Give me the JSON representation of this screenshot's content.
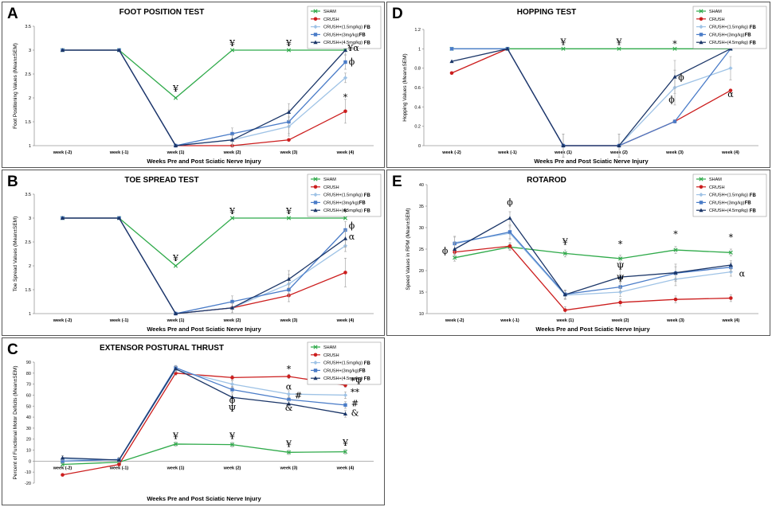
{
  "colors": {
    "sham": "#2faa4a",
    "crush": "#cc1e1e",
    "fb15": "#9fc3e6",
    "fb3": "#4a7cc8",
    "fb45": "#1b3668"
  },
  "chart_data": [
    {
      "id": "A",
      "panel_label": "A",
      "type": "line",
      "title": "FOOT POSITION TEST",
      "xlabel": "Weeks Pre and Post Sciatic Nerve Injury",
      "ylabel": "Foot Positioning Values (Mean±SEM)",
      "categories": [
        "week (-2)",
        "week (-1)",
        "week (1)",
        "week (2)",
        "week (3)",
        "week (4)"
      ],
      "ylim": [
        1,
        3.5
      ],
      "yticks": [
        "1",
        "1.5",
        "2",
        "2.5",
        "3",
        "3.5"
      ],
      "series": [
        {
          "name": "SHAM",
          "fb": "",
          "key": "sham",
          "marker": "x",
          "values": [
            3,
            3,
            2,
            3,
            3,
            3
          ],
          "err": [
            0,
            0,
            0,
            0,
            0,
            0
          ]
        },
        {
          "name": "CRUSH",
          "fb": "",
          "key": "crush",
          "marker": "circle",
          "values": [
            3,
            3,
            1,
            1,
            1.12,
            1.72
          ],
          "err": [
            0,
            0,
            0,
            0,
            0,
            0.25
          ]
        },
        {
          "name": "CRUSH+(1.5mg/kg)",
          "fb": "FB",
          "key": "fb15",
          "marker": "diamond",
          "values": [
            3,
            3,
            1,
            1.12,
            1.4,
            2.42
          ],
          "err": [
            0,
            0,
            0,
            0.15,
            0.2,
            0.1
          ]
        },
        {
          "name": "CRUSH+(3mg/kg)",
          "fb": "FB",
          "key": "fb3",
          "marker": "square",
          "values": [
            3,
            3,
            1,
            1.25,
            1.5,
            2.75
          ],
          "err": [
            0,
            0,
            0,
            0.12,
            0.25,
            0.15
          ]
        },
        {
          "name": "CRUSH+(4.5mg/kg)",
          "fb": "FB",
          "key": "fb45",
          "marker": "triangle",
          "values": [
            3,
            3,
            1,
            1.12,
            1.7,
            3.0
          ],
          "err": [
            0,
            0,
            0,
            0.1,
            0.18,
            0.1
          ]
        }
      ],
      "annotations": [
        {
          "text": "¥",
          "cat": 2,
          "y": 2.13
        },
        {
          "text": "¥",
          "cat": 3,
          "y": 3.08
        },
        {
          "text": "¥",
          "cat": 4,
          "y": 3.08
        },
        {
          "text": "¥α",
          "cat": 5,
          "y": 2.98,
          "dx": 10
        },
        {
          "text": "ϕ",
          "cat": 5,
          "y": 2.7,
          "dx": 8
        },
        {
          "text": "*",
          "cat": 5,
          "y": 1.95,
          "dx": 0
        }
      ]
    },
    {
      "id": "B",
      "panel_label": "B",
      "type": "line",
      "title": "TOE SPREAD TEST",
      "xlabel": "Weeks Pre and Post Sciatic Nerve Injury",
      "ylabel": "Toe Spread Values (Mean±SEM)",
      "categories": [
        "week (-2)",
        "week (-1)",
        "week (1)",
        "week (2)",
        "week (3)",
        "week (4)"
      ],
      "ylim": [
        1,
        3.5
      ],
      "yticks": [
        "1",
        "1.5",
        "2",
        "2.5",
        "3",
        "3.5"
      ],
      "series": [
        {
          "name": "SHAM",
          "fb": "",
          "key": "sham",
          "marker": "x",
          "values": [
            3,
            3,
            2,
            3,
            3,
            3
          ],
          "err": [
            0,
            0,
            0,
            0,
            0,
            0
          ]
        },
        {
          "name": "CRUSH",
          "fb": "",
          "key": "crush",
          "marker": "circle",
          "values": [
            3,
            3,
            1,
            1.12,
            1.38,
            1.86
          ],
          "err": [
            0,
            0,
            0,
            0,
            0,
            0.3
          ]
        },
        {
          "name": "CRUSH+(1.5mg/kg)",
          "fb": "FB",
          "key": "fb15",
          "marker": "diamond",
          "values": [
            3,
            3,
            1,
            1.12,
            1.62,
            2.42
          ],
          "err": [
            0,
            0,
            0,
            0.1,
            0.2,
            0.12
          ]
        },
        {
          "name": "CRUSH+(3mg/kg)",
          "fb": "FB",
          "key": "fb3",
          "marker": "square",
          "values": [
            3,
            3,
            1,
            1.25,
            1.5,
            2.75
          ],
          "err": [
            0,
            0,
            0,
            0.12,
            0.25,
            0.18
          ]
        },
        {
          "name": "CRUSH+(4.5mg/kg)",
          "fb": "FB",
          "key": "fb45",
          "marker": "triangle",
          "values": [
            3,
            3,
            1,
            1.12,
            1.72,
            2.57
          ],
          "err": [
            0,
            0,
            0,
            0.1,
            0.18,
            0.18
          ]
        }
      ],
      "annotations": [
        {
          "text": "¥",
          "cat": 2,
          "y": 2.1
        },
        {
          "text": "¥",
          "cat": 3,
          "y": 3.08
        },
        {
          "text": "¥",
          "cat": 4,
          "y": 3.08
        },
        {
          "text": "*",
          "cat": 5,
          "y": 3.06,
          "dx": 0
        },
        {
          "text": "ϕ",
          "cat": 5,
          "y": 2.78,
          "dx": 8
        },
        {
          "text": "α",
          "cat": 5,
          "y": 2.55,
          "dx": 8
        }
      ]
    },
    {
      "id": "C",
      "panel_label": "C",
      "type": "line",
      "title": "EXTENSOR POSTURAL THRUST",
      "xlabel": "Weeks Pre and Post Sciatic Nerve Injury",
      "ylabel": "Percent of Functional Motor Deficits (Mean±SEM)",
      "categories": [
        "week (-2)",
        "week (-1)",
        "week (1)",
        "week (2)",
        "week (3)",
        "week (4)"
      ],
      "ylim": [
        -20,
        90
      ],
      "yticks": [
        "-20",
        "-10",
        "0",
        "10",
        "20",
        "30",
        "40",
        "50",
        "60",
        "70",
        "80",
        "90"
      ],
      "series": [
        {
          "name": "SHAM",
          "fb": "",
          "key": "sham",
          "marker": "x",
          "values": [
            -3,
            -1,
            15.5,
            15,
            8,
            8.5
          ],
          "err": [
            0,
            0,
            2,
            2,
            2,
            2
          ]
        },
        {
          "name": "CRUSH",
          "fb": "",
          "key": "crush",
          "marker": "circle",
          "values": [
            -12.5,
            -3,
            80,
            76,
            77,
            69
          ],
          "err": [
            0,
            0,
            2,
            2,
            2,
            2
          ]
        },
        {
          "name": "CRUSH+(1.5mg/kg)",
          "fb": "FB",
          "key": "fb15",
          "marker": "diamond",
          "values": [
            2,
            1,
            83,
            70,
            61,
            60
          ],
          "err": [
            3,
            2,
            2,
            3,
            3,
            3
          ]
        },
        {
          "name": "CRUSH+(3mg/kg)",
          "fb": "FB",
          "key": "fb3",
          "marker": "square",
          "values": [
            0,
            1.5,
            85,
            65,
            56,
            51
          ],
          "err": [
            2,
            2,
            2,
            3,
            3,
            3
          ]
        },
        {
          "name": "CRUSH+(4.5mg/kg)",
          "fb": "FB",
          "key": "fb45",
          "marker": "triangle",
          "values": [
            3,
            1,
            84,
            58,
            52,
            43
          ],
          "err": [
            2,
            2,
            2,
            3,
            3,
            3
          ]
        }
      ],
      "annotations": [
        {
          "text": "¥",
          "cat": 2,
          "y": 20
        },
        {
          "text": "¥",
          "cat": 3,
          "y": 20
        },
        {
          "text": "¥",
          "cat": 4,
          "y": 13
        },
        {
          "text": "¥",
          "cat": 5,
          "y": 14
        },
        {
          "text": "*",
          "cat": 4,
          "y": 81
        },
        {
          "text": "α",
          "cat": 4,
          "y": 65
        },
        {
          "text": "#",
          "cat": 4,
          "y": 57,
          "dx": 12
        },
        {
          "text": "&",
          "cat": 4,
          "y": 46
        },
        {
          "text": "ϕ",
          "cat": 3,
          "y": 53
        },
        {
          "text": "Ψ",
          "cat": 3,
          "y": 45
        },
        {
          "text": "*Ψ",
          "cat": 5,
          "y": 70,
          "dx": 14
        },
        {
          "text": "**",
          "cat": 5,
          "y": 60,
          "dx": 12
        },
        {
          "text": "#",
          "cat": 5,
          "y": 50,
          "dx": 12
        },
        {
          "text": "&",
          "cat": 5,
          "y": 41,
          "dx": 12
        }
      ]
    },
    {
      "id": "D",
      "panel_label": "D",
      "type": "line",
      "title": "HOPPING TEST",
      "xlabel": "Weeks Pre and Post Sciatic Nerve Injury",
      "ylabel": "Hopping Values (Mean±SEM)",
      "categories": [
        "week (-2)",
        "week (-1)",
        "week (1)",
        "week (2)",
        "week (3)",
        "week (4)"
      ],
      "ylim": [
        0,
        1.2
      ],
      "yticks": [
        "0",
        "0.2",
        "0.4",
        "0.6",
        "0.8",
        "1",
        "1.2"
      ],
      "series": [
        {
          "name": "SHAM",
          "fb": "",
          "key": "sham",
          "marker": "x",
          "values": [
            1,
            1,
            1,
            1,
            1,
            1
          ],
          "err": [
            0,
            0,
            0,
            0,
            0,
            0
          ]
        },
        {
          "name": "CRUSH",
          "fb": "",
          "key": "crush",
          "marker": "circle",
          "values": [
            0.75,
            1,
            0,
            0,
            0.25,
            0.57
          ],
          "err": [
            0,
            0,
            0,
            0,
            0,
            0
          ]
        },
        {
          "name": "CRUSH+(1.5mg/kg)",
          "fb": "FB",
          "key": "fb15",
          "marker": "diamond",
          "values": [
            1,
            1,
            0,
            0,
            0.6,
            0.8
          ],
          "err": [
            0,
            0,
            0.12,
            0.12,
            0.18,
            0.12
          ]
        },
        {
          "name": "CRUSH+(3mg/kg)",
          "fb": "FB",
          "key": "fb3",
          "marker": "square",
          "values": [
            1,
            1,
            0,
            0,
            0.25,
            1
          ],
          "err": [
            0,
            0,
            0,
            0,
            0,
            0
          ]
        },
        {
          "name": "CRUSH+(4.5mg/kg)",
          "fb": "FB",
          "key": "fb45",
          "marker": "triangle",
          "values": [
            0.87,
            1,
            0,
            0,
            0.71,
            1
          ],
          "err": [
            0,
            0,
            0.12,
            0.12,
            0.17,
            0
          ]
        }
      ],
      "annotations": [
        {
          "text": "¥",
          "cat": 2,
          "y": 1.04
        },
        {
          "text": "¥",
          "cat": 3,
          "y": 1.04
        },
        {
          "text": "*",
          "cat": 4,
          "y": 1.02
        },
        {
          "text": "ϕ",
          "cat": 4,
          "y": 0.68,
          "dx": 8
        },
        {
          "text": "ϕ",
          "cat": 4,
          "y": 0.45,
          "dx": -4
        },
        {
          "text": "α",
          "cat": 5,
          "y": 0.5,
          "dx": 0
        }
      ]
    },
    {
      "id": "E",
      "panel_label": "E",
      "type": "line",
      "title": "ROTAROD",
      "xlabel": "Weeks Pre and Post Sciatic Nerve Injury",
      "ylabel": "Speed Values in RPM (Mean±SEM)",
      "categories": [
        "week (-2)",
        "week (-1)",
        "week (1)",
        "week (2)",
        "week (3)",
        "week (4)"
      ],
      "ylim": [
        10,
        40
      ],
      "yticks": [
        "10",
        "15",
        "20",
        "25",
        "30",
        "35",
        "40"
      ],
      "series": [
        {
          "name": "SHAM",
          "fb": "",
          "key": "sham",
          "marker": "x",
          "values": [
            23,
            25.5,
            24,
            22.8,
            24.8,
            24.2
          ],
          "err": [
            0.8,
            0.8,
            0.8,
            0.8,
            0.8,
            0.8
          ]
        },
        {
          "name": "CRUSH",
          "fb": "",
          "key": "crush",
          "marker": "circle",
          "values": [
            24.3,
            25.7,
            10.8,
            12.6,
            13.3,
            13.6
          ],
          "err": [
            0.8,
            0.8,
            0.8,
            0.8,
            0.8,
            0.8
          ]
        },
        {
          "name": "CRUSH+(1.5mg/kg)",
          "fb": "FB",
          "key": "fb15",
          "marker": "diamond",
          "values": [
            26.5,
            28.7,
            14.3,
            15,
            18,
            19.7
          ],
          "err": [
            1.5,
            1.5,
            1,
            1,
            1.5,
            1
          ]
        },
        {
          "name": "CRUSH+(3mg/kg)",
          "fb": "FB",
          "key": "fb3",
          "marker": "square",
          "values": [
            26.3,
            29,
            14.5,
            16.2,
            19.4,
            20.8
          ],
          "err": [
            1.5,
            1.5,
            1,
            1,
            1.5,
            1
          ]
        },
        {
          "name": "CRUSH+(4.5mg/kg)",
          "fb": "FB",
          "key": "fb45",
          "marker": "triangle",
          "values": [
            25,
            32.2,
            14.4,
            18.5,
            19.5,
            21.3
          ],
          "err": [
            1.5,
            1.5,
            1,
            2.5,
            2,
            1
          ]
        }
      ],
      "annotations": [
        {
          "text": "ϕ",
          "cat": 0,
          "y": 24,
          "dx": -12
        },
        {
          "text": "ϕ",
          "cat": 1,
          "y": 35.3
        },
        {
          "text": "¥",
          "cat": 2,
          "y": 26
        },
        {
          "text": "*",
          "cat": 3,
          "y": 25.5
        },
        {
          "text": "Ψ",
          "cat": 3,
          "y": 20.3
        },
        {
          "text": "Ψ",
          "cat": 3,
          "y": 17.5
        },
        {
          "text": "*",
          "cat": 4,
          "y": 27.8
        },
        {
          "text": "*",
          "cat": 5,
          "y": 27
        },
        {
          "text": "α",
          "cat": 5,
          "y": 18.6,
          "dx": 14
        }
      ]
    }
  ]
}
